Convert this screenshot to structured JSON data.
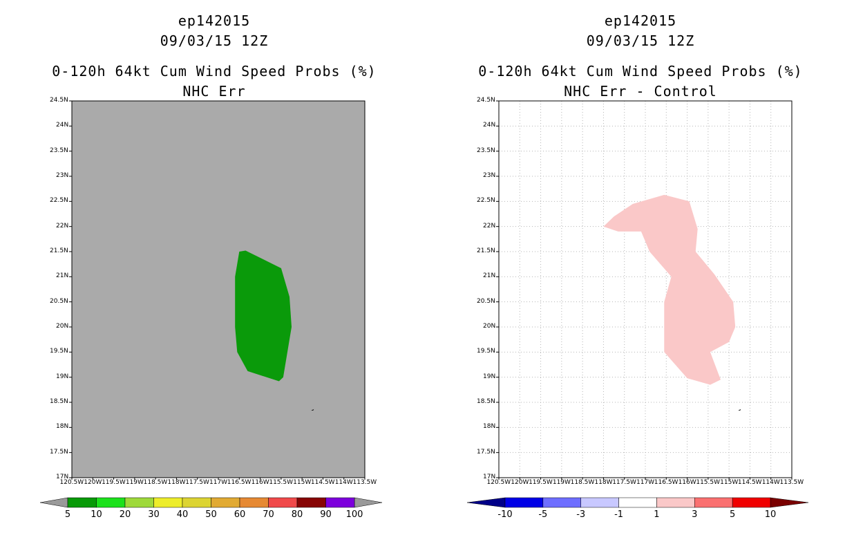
{
  "chart_data": [
    {
      "type": "map-contour",
      "titles": [
        "ep142015",
        "09/03/15 12Z",
        "0-120h 64kt Cum Wind Speed Probs (%)",
        "NHC Err"
      ],
      "lat_range": [
        17,
        24.5
      ],
      "lon_range": [
        -120.5,
        -113.5
      ],
      "lat_ticks": [
        "24.5N",
        "24N",
        "23.5N",
        "23N",
        "22.5N",
        "22N",
        "21.5N",
        "21N",
        "20.5N",
        "20N",
        "19.5N",
        "19N",
        "18.5N",
        "18N",
        "17.5N",
        "17N"
      ],
      "lon_ticks": [
        "120.5W",
        "120W",
        "119.5W",
        "119W",
        "118.5W",
        "118W",
        "117.5W",
        "117W",
        "116.5W",
        "116W",
        "115.5W",
        "115W",
        "114.5W",
        "114W",
        "113.5W"
      ],
      "background_color": "#aaaaaa",
      "grid": false,
      "contour_region": {
        "level": "10-20",
        "color": "#0a9a0a",
        "polygon_lonlat": [
          [
            -116.5,
            21.5
          ],
          [
            -116.35,
            21.52
          ],
          [
            -115.5,
            21.17
          ],
          [
            -115.3,
            20.6
          ],
          [
            -115.25,
            20.0
          ],
          [
            -115.45,
            19.0
          ],
          [
            -115.55,
            18.92
          ],
          [
            -116.3,
            19.12
          ],
          [
            -116.55,
            19.5
          ],
          [
            -116.6,
            20.0
          ],
          [
            -116.6,
            21.0
          ]
        ]
      },
      "land_speck_lonlat": [
        -114.75,
        18.35
      ],
      "colorbar": {
        "labels": [
          "5",
          "10",
          "20",
          "30",
          "40",
          "50",
          "60",
          "70",
          "80",
          "90",
          "100"
        ],
        "colors": [
          "#089a08",
          "#1ce11c",
          "#9ed93a",
          "#eded2a",
          "#dcd432",
          "#e1aa33",
          "#e68933",
          "#f0494a",
          "#870404",
          "#7d00dc"
        ],
        "under_color": "#9a9a9a",
        "over_color": "#9a9a9a"
      }
    },
    {
      "type": "map-contour",
      "titles": [
        "ep142015",
        "09/03/15 12Z",
        "0-120h 64kt Cum Wind Speed Probs (%)",
        "NHC Err - Control"
      ],
      "lat_range": [
        17,
        24.5
      ],
      "lon_range": [
        -120.5,
        -113.5
      ],
      "lat_ticks": [
        "24.5N",
        "24N",
        "23.5N",
        "23N",
        "22.5N",
        "22N",
        "21.5N",
        "21N",
        "20.5N",
        "20N",
        "19.5N",
        "19N",
        "18.5N",
        "18N",
        "17.5N",
        "17N"
      ],
      "lon_ticks": [
        "120.5W",
        "120W",
        "119.5W",
        "119W",
        "118.5W",
        "118W",
        "117.5W",
        "117W",
        "116.5W",
        "116W",
        "115.5W",
        "115W",
        "114.5W",
        "114W",
        "113.5W"
      ],
      "background_color": "#ffffff",
      "grid": true,
      "contour_region": {
        "level": "1-3",
        "color": "#fac8c8",
        "polygon_lonlat": [
          [
            -118.0,
            22.0
          ],
          [
            -117.75,
            22.2
          ],
          [
            -117.3,
            22.45
          ],
          [
            -116.55,
            22.63
          ],
          [
            -115.95,
            22.5
          ],
          [
            -115.75,
            21.95
          ],
          [
            -115.8,
            21.5
          ],
          [
            -115.35,
            21.05
          ],
          [
            -114.9,
            20.5
          ],
          [
            -114.85,
            20.0
          ],
          [
            -115.0,
            19.7
          ],
          [
            -115.45,
            19.5
          ],
          [
            -115.2,
            18.95
          ],
          [
            -115.45,
            18.85
          ],
          [
            -116.0,
            18.98
          ],
          [
            -116.55,
            19.5
          ],
          [
            -116.55,
            20.5
          ],
          [
            -116.38,
            21.0
          ],
          [
            -116.9,
            21.5
          ],
          [
            -117.1,
            21.9
          ],
          [
            -117.65,
            21.9
          ]
        ]
      },
      "land_speck_lonlat": [
        -114.75,
        18.35
      ],
      "colorbar": {
        "labels": [
          "-10",
          "-5",
          "-3",
          "-1",
          "1",
          "3",
          "5",
          "10"
        ],
        "colors": [
          "#0000e6",
          "#6e6eff",
          "#c8c8ff",
          "#ffffff",
          "#fac8c8",
          "#fa7070",
          "#f00000"
        ],
        "under_color": "#000088",
        "over_color": "#7a0000"
      }
    }
  ]
}
